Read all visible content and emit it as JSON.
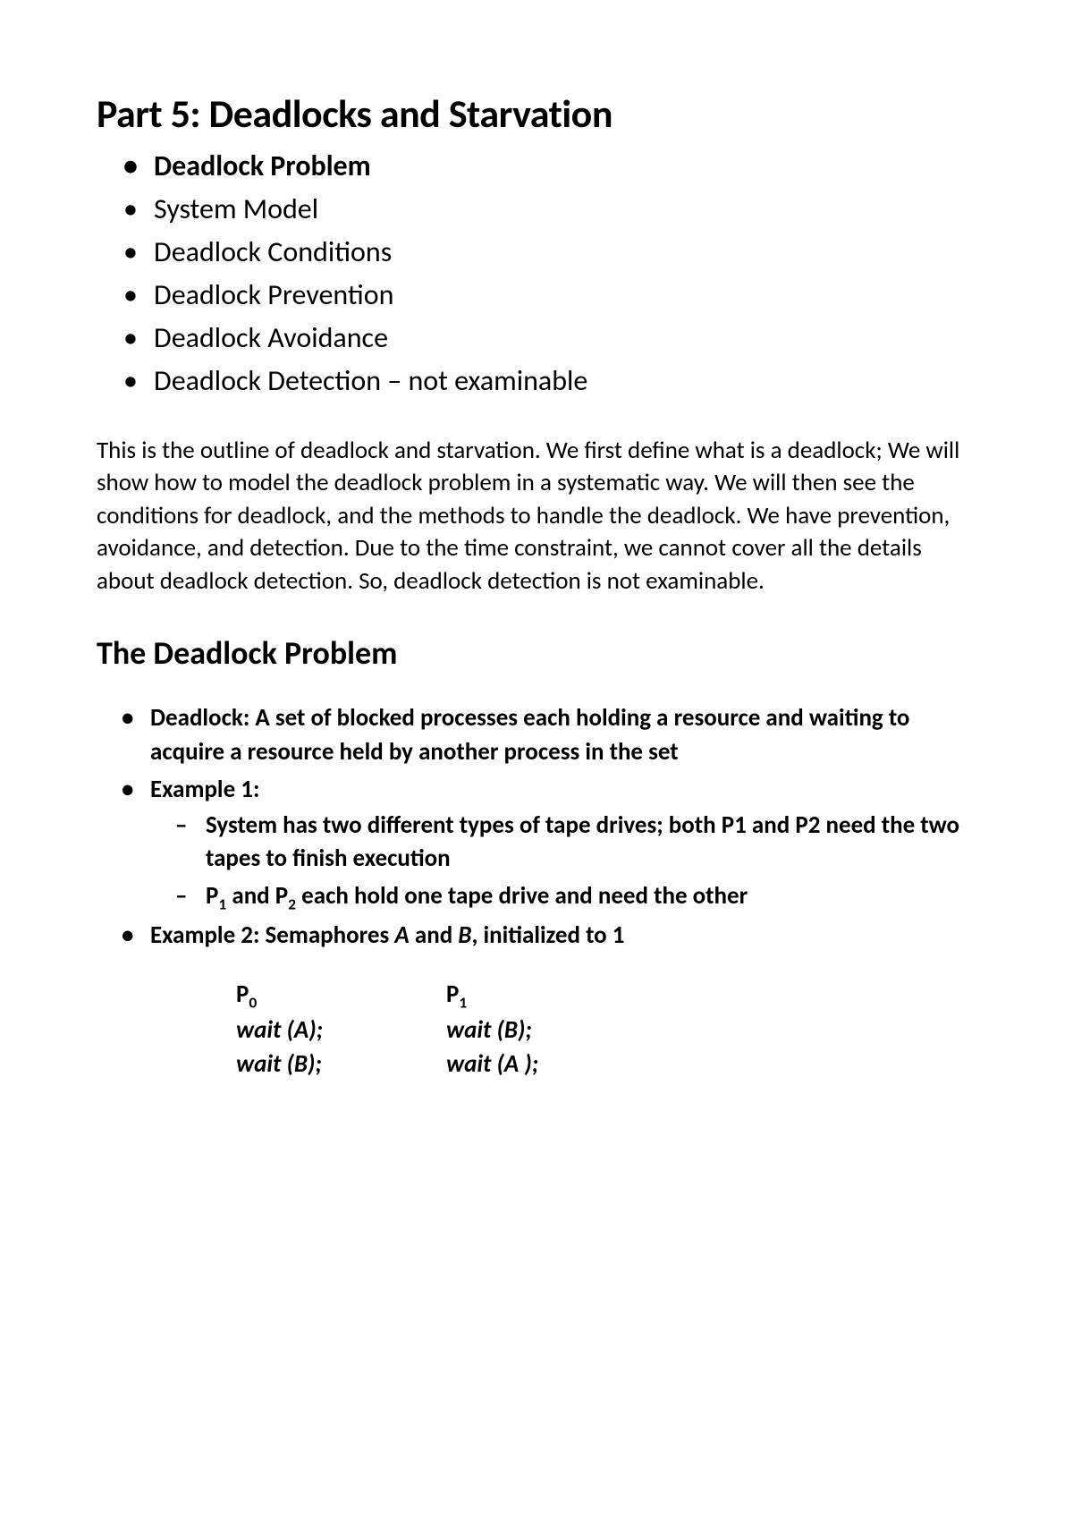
{
  "page": {
    "title": "Part 5:  Deadlocks and Starvation",
    "outline_items": [
      "Deadlock Problem",
      "System Model",
      "Deadlock Conditions",
      "Deadlock Prevention",
      "Deadlock Avoidance",
      "Deadlock Detection – not examinable"
    ],
    "intro_paragraph": "This is the outline of deadlock and starvation. We first define what is a deadlock; We will show how to model the deadlock problem in a systematic way. We will then see the conditions for deadlock, and the methods to handle the deadlock. We have prevention, avoidance, and detection. Due to the time constraint, we cannot cover all the details about deadlock detection. So, deadlock detection is not examinable.",
    "section_heading": "The Deadlock Problem",
    "definition": "Deadlock: A set of blocked processes each holding a resource and waiting to acquire a resource held by another process in the set",
    "example1_label": "Example 1:",
    "example1_sub1": "System has two different types of tape drives; both P1 and P2 need the two tapes to finish execution",
    "example1_sub2_prefix": "P",
    "example1_sub2_sub1": "1",
    "example1_sub2_mid": " and P",
    "example1_sub2_sub2": "2",
    "example1_sub2_suffix": " each hold one tape drive and need the other",
    "example2_prefix": "Example 2: Semaphores ",
    "example2_a": "A",
    "example2_mid": " and ",
    "example2_b": "B",
    "example2_suffix": ", initialized to 1",
    "code": {
      "header_p0": "P",
      "header_p0_sub": "0",
      "header_p1": "P",
      "header_p1_sub": "1",
      "wait": "wait",
      "row1_col1": " (A);",
      "row1_col2": " (B);",
      "row2_col1": " (B);",
      "row2_col2": " (A );"
    }
  },
  "colors": {
    "text": "#000000",
    "background": "#ffffff"
  },
  "typography": {
    "title_fontsize": 44,
    "outline_fontsize": 32,
    "body_fontsize": 27,
    "heading_fontsize": 36
  }
}
